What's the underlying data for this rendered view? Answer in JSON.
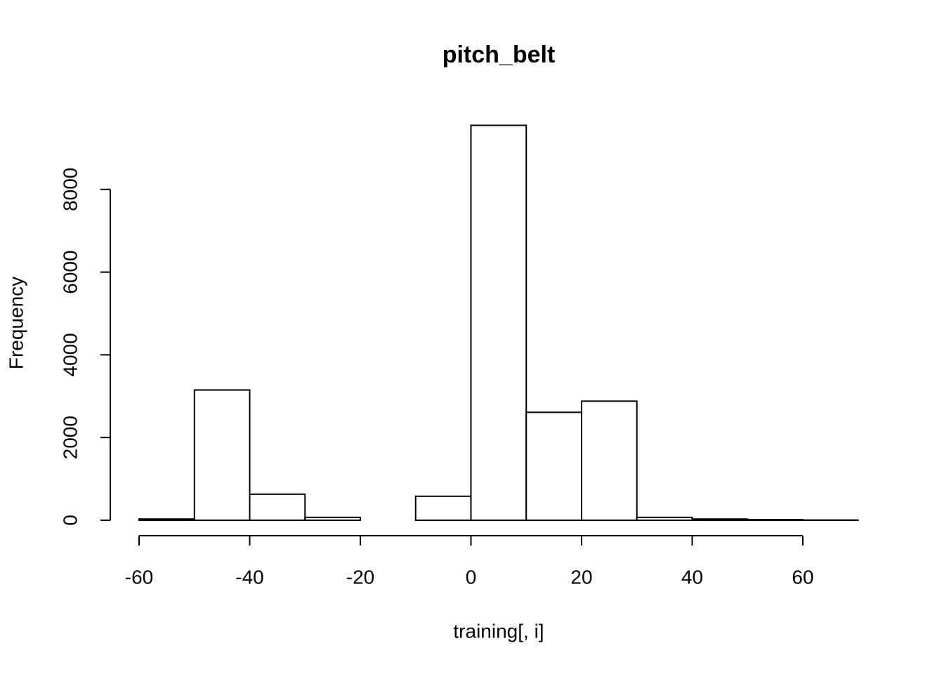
{
  "chart_data": {
    "type": "histogram",
    "title": "pitch_belt",
    "x_label": "training[, i]",
    "y_label": "Frequency",
    "bins": [
      -60,
      -50,
      -40,
      -30,
      -20,
      -10,
      0,
      10,
      20,
      30,
      40,
      50,
      60,
      70
    ],
    "values": [
      30,
      3150,
      630,
      70,
      0,
      580,
      9550,
      2610,
      2880,
      70,
      30,
      15,
      5
    ],
    "color": "#ffffff",
    "edge_color": "#000000",
    "xlim": [
      -60,
      70
    ],
    "ylim": [
      0,
      9550
    ],
    "xticks": [
      -60,
      -40,
      -20,
      0,
      20,
      40,
      60
    ],
    "yticks": [
      0,
      2000,
      4000,
      6000,
      8000
    ]
  }
}
